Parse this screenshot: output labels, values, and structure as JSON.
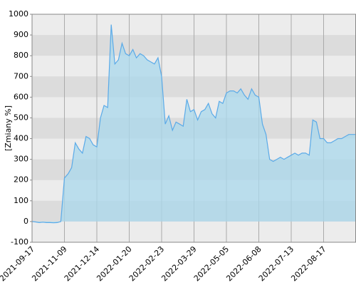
{
  "chart_data": {
    "type": "area",
    "ylabel": "[Zmiany %]",
    "categories": [
      "2021-09-17",
      null,
      null,
      null,
      null,
      null,
      null,
      null,
      null,
      "2021-11-09",
      null,
      null,
      null,
      null,
      null,
      null,
      null,
      null,
      "2021-12-14",
      null,
      null,
      null,
      null,
      null,
      null,
      null,
      null,
      "2022-01-20",
      null,
      null,
      null,
      null,
      null,
      null,
      null,
      null,
      "2022-02-23",
      null,
      null,
      null,
      null,
      null,
      null,
      null,
      null,
      "2022-03-29",
      null,
      null,
      null,
      null,
      null,
      null,
      null,
      null,
      "2022-05-05",
      null,
      null,
      null,
      null,
      null,
      null,
      null,
      null,
      "2022-06-08",
      null,
      null,
      null,
      null,
      null,
      null,
      null,
      null,
      "2022-07-13",
      null,
      null,
      null,
      null,
      null,
      null,
      null,
      null,
      "2022-08-17",
      null,
      null,
      null,
      null,
      null,
      null,
      null,
      null,
      null
    ],
    "values": [
      0,
      -2,
      -5,
      -3,
      -5,
      -5,
      -6,
      -5,
      0,
      210,
      230,
      260,
      380,
      350,
      330,
      410,
      400,
      370,
      360,
      500,
      560,
      550,
      950,
      760,
      780,
      860,
      810,
      800,
      830,
      790,
      810,
      800,
      780,
      770,
      760,
      790,
      700,
      470,
      510,
      440,
      480,
      470,
      460,
      590,
      530,
      540,
      490,
      530,
      540,
      570,
      520,
      500,
      580,
      570,
      620,
      630,
      630,
      620,
      640,
      610,
      590,
      640,
      610,
      600,
      470,
      420,
      300,
      290,
      300,
      310,
      300,
      310,
      320,
      330,
      320,
      330,
      330,
      320,
      490,
      480,
      400,
      400,
      380,
      380,
      390,
      400,
      400,
      410,
      420,
      420,
      420
    ],
    "color": "#5aaae8",
    "ylim": [
      -100,
      1000
    ],
    "yticks": [
      -100,
      0,
      100,
      200,
      300,
      400,
      500,
      600,
      700,
      800,
      900,
      1000
    ],
    "grid": true
  }
}
